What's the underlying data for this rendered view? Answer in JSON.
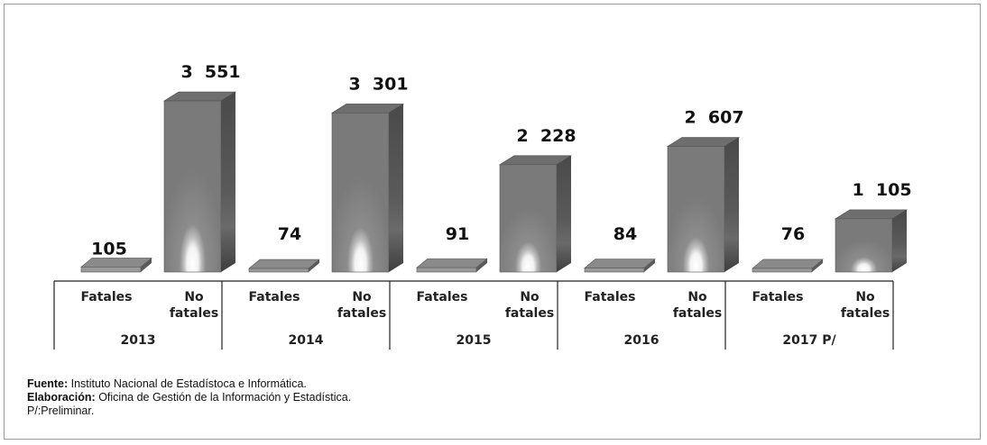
{
  "chart_data": {
    "type": "bar",
    "categories": [
      "2013",
      "2014",
      "2015",
      "2016",
      "2017 P/"
    ],
    "series": [
      {
        "name": "Fatales",
        "values": [
          105,
          74,
          91,
          84,
          76
        ]
      },
      {
        "name": "No fatales",
        "values": [
          3551,
          3301,
          2228,
          2607,
          1105
        ]
      }
    ],
    "value_labels": {
      "Fatales": [
        "105",
        "74",
        "91",
        "84",
        "76"
      ],
      "No fatales": [
        "3  551",
        "3  301",
        "2  228",
        "2  607",
        "1  105"
      ]
    },
    "subcategory_labels": [
      [
        "Fatales"
      ],
      [
        "No",
        "fatales"
      ]
    ],
    "ylim": [
      0,
      3551
    ],
    "grid": false,
    "legend": "none",
    "style": "3d-column-grayscale"
  },
  "notes": {
    "source_label": "Fuente:",
    "source_text": " Instituto Nacional de Estadístoca e Informática.",
    "elaboration_label": "Elaboración:",
    "elaboration_text": " Oficina de Gestión de la Información y Estadística.",
    "preliminary": "P/:Preliminar."
  }
}
